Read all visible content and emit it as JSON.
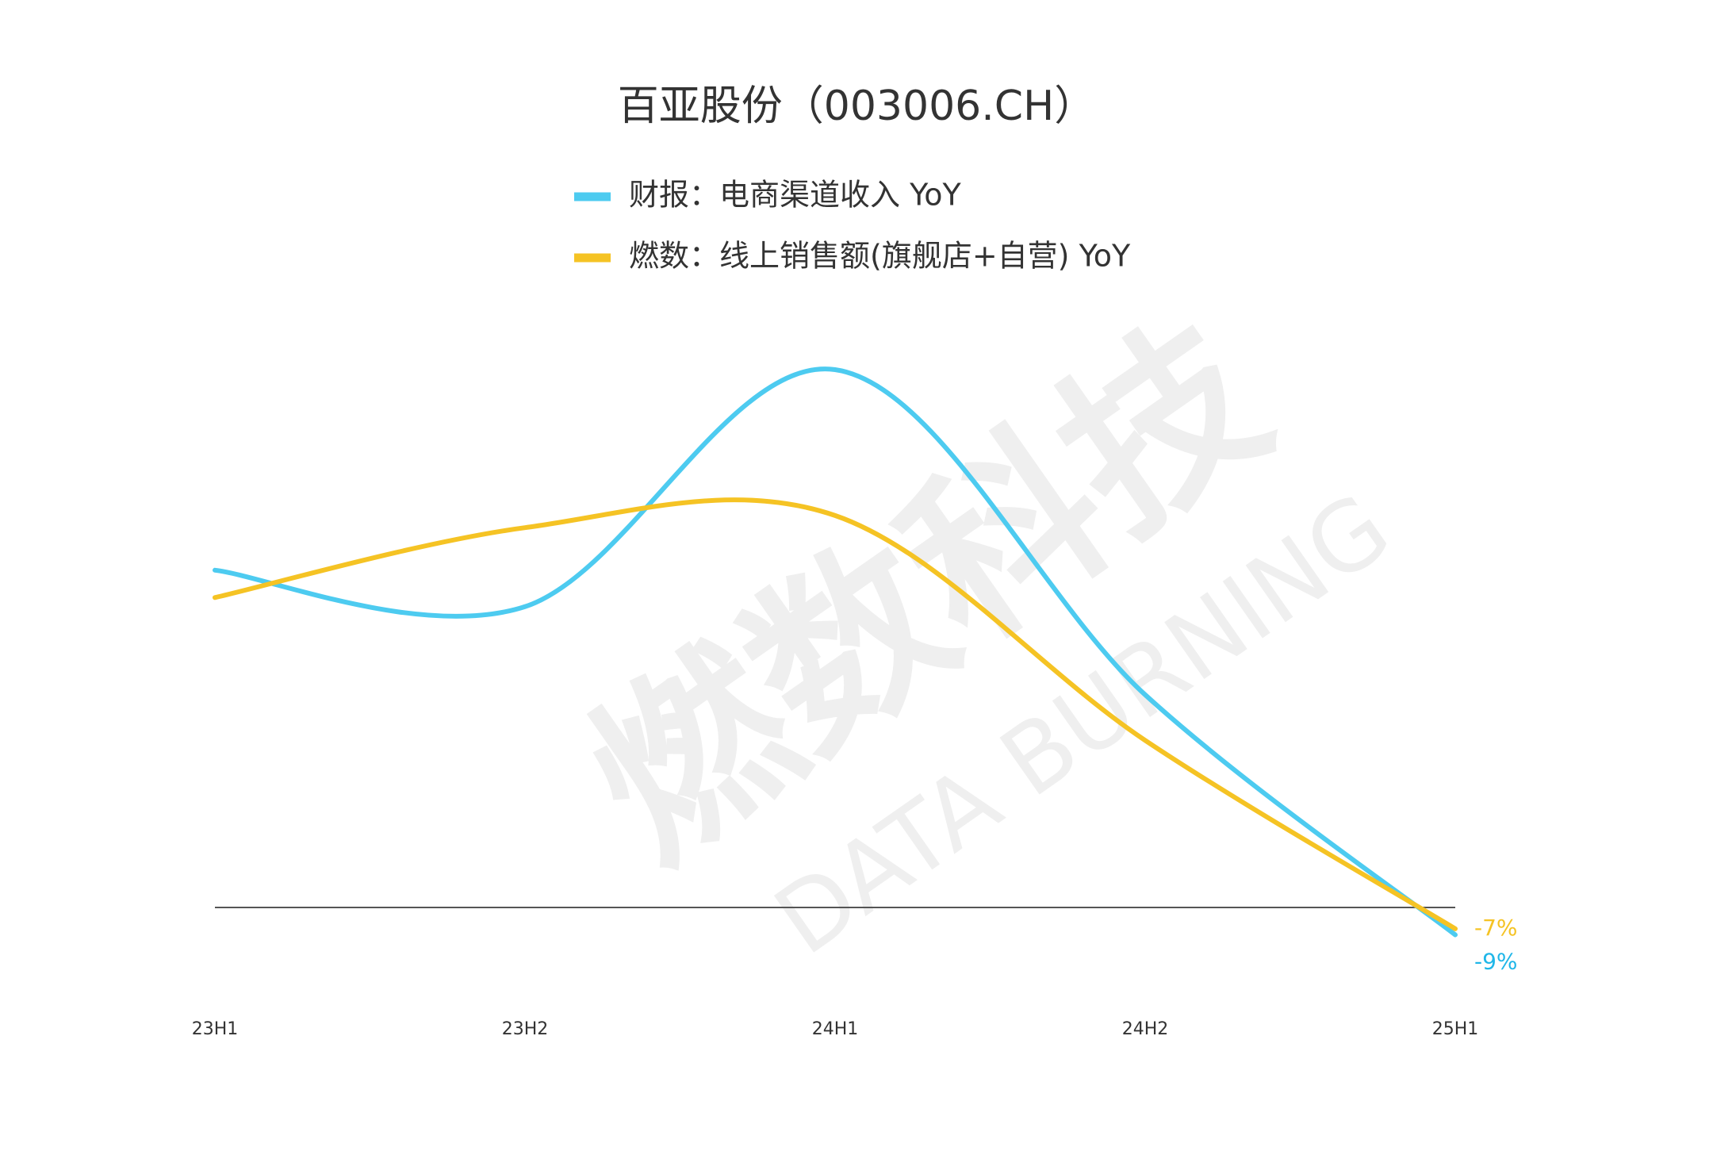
{
  "chart_data": {
    "type": "line",
    "title": "百亚股份（003006.CH）",
    "watermark": {
      "text": "燃数科技",
      "subtext": "DATA BURNING"
    },
    "categories": [
      "23H1",
      "23H2",
      "24H1",
      "24H2",
      "25H1"
    ],
    "series": [
      {
        "name": "财报：电商渠道收入 YoY",
        "color": "#4dcbf0",
        "values": [
          111,
          99,
          177,
          70,
          -9
        ],
        "value_labels": [
          null,
          null,
          null,
          null,
          "-9%"
        ]
      },
      {
        "name": "燃数：线上销售额(旗舰店+自营) YoY",
        "color": "#f5c324",
        "values": [
          102,
          125,
          129,
          55,
          -7
        ],
        "value_labels": [
          null,
          null,
          null,
          null,
          "-7%"
        ]
      }
    ]
  }
}
